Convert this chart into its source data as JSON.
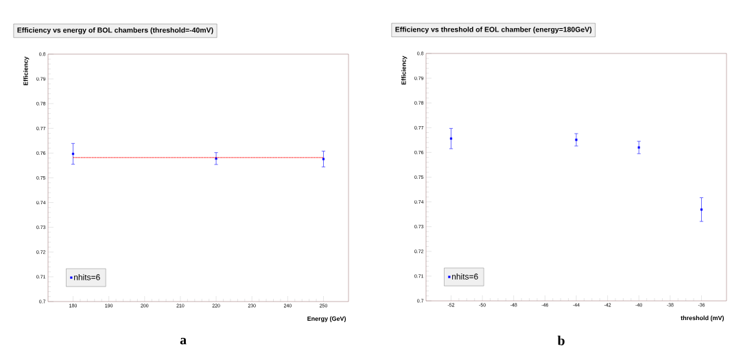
{
  "chart_data": [
    {
      "type": "scatter",
      "title": "Efficiency vs energy of BOL chambers (threshold=-40mV)",
      "xlabel": "Energy (GeV)",
      "ylabel": "Efficiency",
      "annotations": [
        "a"
      ],
      "xlim": [
        173,
        257
      ],
      "ylim": [
        0.7,
        0.8
      ],
      "xticks": [
        180,
        190,
        200,
        210,
        220,
        230,
        240,
        250
      ],
      "yticks": [
        0.7,
        0.71,
        0.72,
        0.73,
        0.74,
        0.75,
        0.76,
        0.77,
        0.78,
        0.79,
        0.8
      ],
      "marker": "square",
      "legend": "bottom left",
      "grid": false,
      "series": [
        {
          "name": "nhits=6",
          "color": "#0000ff",
          "x": [
            180,
            220,
            250
          ],
          "values": [
            0.7597,
            0.7578,
            0.7576
          ],
          "errors": [
            0.0042,
            0.0024,
            0.0032
          ]
        },
        {
          "type": "line",
          "color": "#ff0000",
          "line_style": "dotted",
          "marker": "none",
          "x": [
            180,
            250
          ],
          "values": [
            0.7582,
            0.7582
          ]
        }
      ]
    },
    {
      "type": "scatter",
      "title": "Efficiency vs threshold of EOL chamber (energy=180GeV)",
      "xlabel": "threshold (mV)",
      "ylabel": "Efficiency",
      "annotations": [
        "b"
      ],
      "xlim": [
        -53.6,
        -34.4
      ],
      "ylim": [
        0.7,
        0.8
      ],
      "xticks": [
        -52,
        -50,
        -48,
        -46,
        -44,
        -42,
        -40,
        -38,
        -36
      ],
      "yticks": [
        0.7,
        0.71,
        0.72,
        0.73,
        0.74,
        0.75,
        0.76,
        0.77,
        0.78,
        0.79,
        0.8
      ],
      "marker": "square",
      "legend": "bottom left",
      "grid": false,
      "series": [
        {
          "name": "nhits=6",
          "color": "#0000ff",
          "x": [
            -52,
            -44,
            -40,
            -36
          ],
          "values": [
            0.7656,
            0.7651,
            0.762,
            0.7369
          ],
          "errors": [
            0.0041,
            0.0025,
            0.0025,
            0.0048
          ]
        }
      ]
    }
  ]
}
